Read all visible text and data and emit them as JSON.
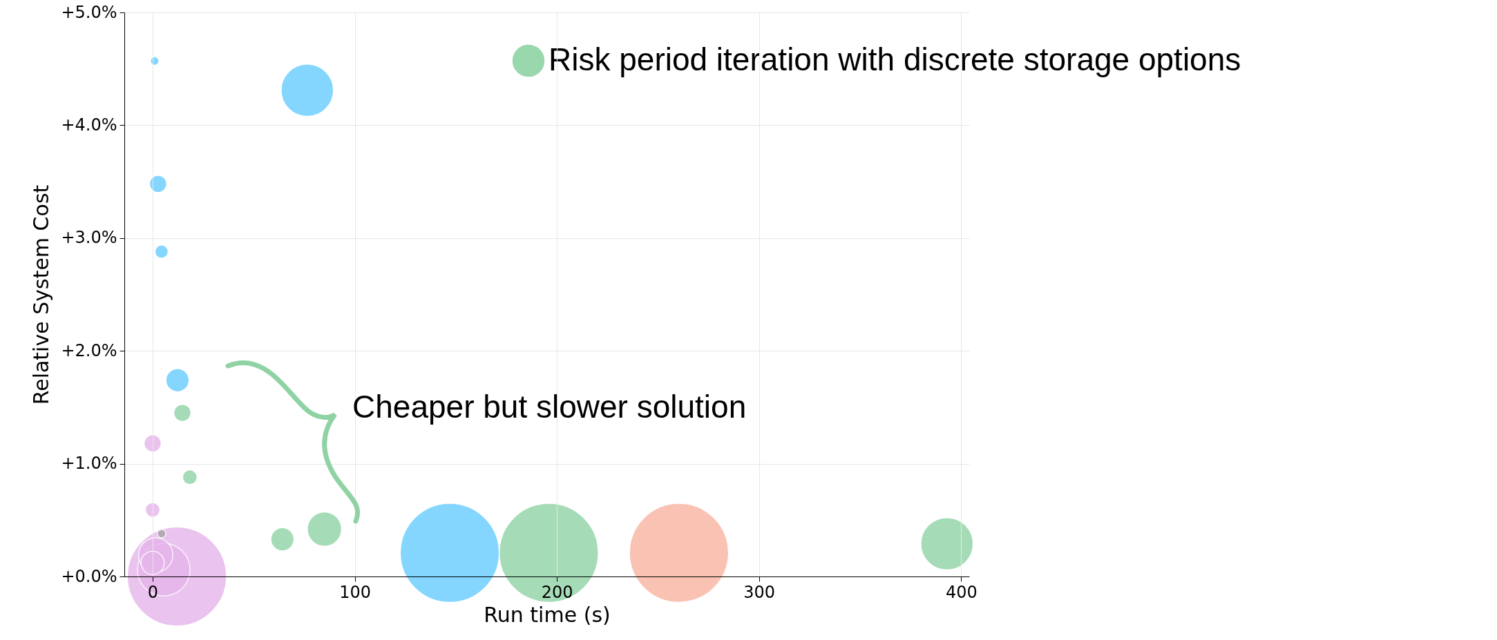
{
  "chart_data": {
    "type": "bubble",
    "xlabel": "Run time (s)",
    "ylabel": "Relative System Cost",
    "xlim": [
      -14,
      404
    ],
    "xticks": [
      0,
      100,
      200,
      300,
      400
    ],
    "ylim": [
      0,
      5
    ],
    "yticks": [
      {
        "value": 0,
        "label": "+0.0%"
      },
      {
        "value": 1,
        "label": "+1.0%"
      },
      {
        "value": 2,
        "label": "+2.0%"
      },
      {
        "value": 3,
        "label": "+3.0%"
      },
      {
        "value": 4,
        "label": "+4.0%"
      },
      {
        "value": 5,
        "label": "+5.0%"
      }
    ],
    "grid": true,
    "legend": "top right",
    "marker": "circle",
    "annotations": [
      "Cheaper but slower solution"
    ],
    "series": [
      {
        "color": "#e6b5eb",
        "x": [
          12,
          5.5,
          1.5,
          0,
          0,
          0
        ],
        "values": [
          0,
          0.06,
          0.19,
          0.12,
          1.18,
          0.59
        ],
        "sizes": [
          1,
          0.28,
          0.12,
          0.055,
          0.03,
          0.022
        ]
      },
      {
        "color": "#66cdff",
        "x": [
          1,
          76.5,
          2.7,
          4.4,
          12.3,
          147
        ],
        "values": [
          4.57,
          4.31,
          3.48,
          2.88,
          1.74,
          0.21
        ],
        "sizes": [
          0.0075,
          0.28,
          0.03,
          0.018,
          0.055,
          1
        ]
      },
      {
        "name": "Risk period iteration with discrete storage options",
        "color": "#8fd3a4",
        "x": [
          14.7,
          18.4,
          64.2,
          85,
          196,
          393
        ],
        "values": [
          1.45,
          0.88,
          0.33,
          0.42,
          0.21,
          0.29
        ],
        "sizes": [
          0.03,
          0.022,
          0.055,
          0.12,
          1,
          0.28
        ]
      },
      {
        "color": "#f9b39f",
        "x": [
          260.4
        ],
        "values": [
          0.21
        ],
        "sizes": [
          1
        ]
      },
      {
        "color": "#a6a6a6",
        "x": [
          4.4
        ],
        "values": [
          0.38
        ],
        "sizes": [
          0.0075
        ]
      }
    ]
  }
}
